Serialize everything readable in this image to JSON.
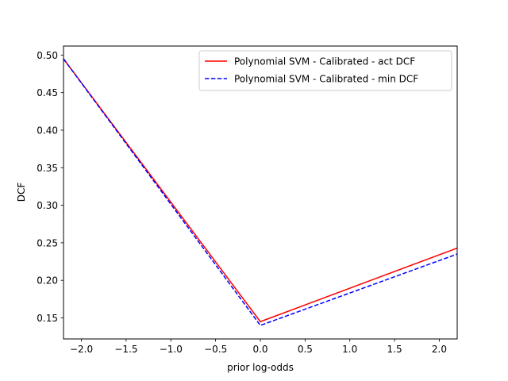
{
  "chart_data": {
    "type": "line",
    "xlabel": "prior log-odds",
    "ylabel": "DCF",
    "xlim": [
      -2.2,
      2.2
    ],
    "ylim": [
      0.122,
      0.512
    ],
    "xticks": [
      -2.0,
      -1.5,
      -1.0,
      -0.5,
      0.0,
      0.5,
      1.0,
      1.5,
      2.0
    ],
    "xtick_labels": [
      "−2.0",
      "−1.5",
      "−1.0",
      "−0.5",
      "0.0",
      "0.5",
      "1.0",
      "1.5",
      "2.0"
    ],
    "yticks": [
      0.15,
      0.2,
      0.25,
      0.3,
      0.35,
      0.4,
      0.45,
      0.5
    ],
    "ytick_labels": [
      "0.15",
      "0.20",
      "0.25",
      "0.30",
      "0.35",
      "0.40",
      "0.45",
      "0.50"
    ],
    "grid": false,
    "legend_position": "top-right",
    "series": [
      {
        "name": "Polynomial SVM - Calibrated - act DCF",
        "color": "#ff0000",
        "style": "solid",
        "x": [
          -2.2,
          0.0,
          2.2
        ],
        "y": [
          0.495,
          0.145,
          0.243
        ]
      },
      {
        "name": "Polynomial SVM - Calibrated - min DCF",
        "color": "#0000ff",
        "style": "dashed",
        "x": [
          -2.2,
          0.0,
          2.2
        ],
        "y": [
          0.495,
          0.14,
          0.235
        ]
      }
    ]
  }
}
